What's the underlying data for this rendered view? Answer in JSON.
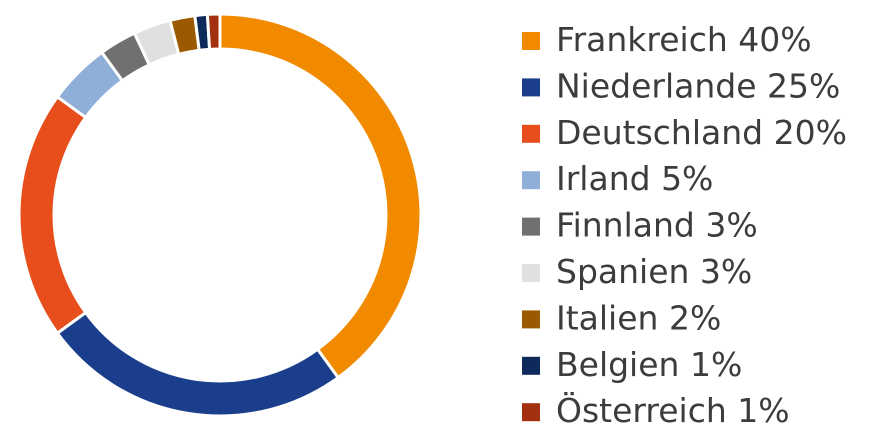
{
  "chart_data": {
    "type": "donut",
    "categories": [
      "Frankreich",
      "Niederlande",
      "Deutschland",
      "Irland",
      "Finnland",
      "Spanien",
      "Italien",
      "Belgien",
      "Österreich"
    ],
    "values": [
      40,
      25,
      20,
      5,
      3,
      3,
      2,
      1,
      1
    ],
    "value_labels": [
      "40%",
      "25%",
      "20%",
      "5%",
      "3%",
      "3%",
      "2%",
      "1%",
      "1%"
    ],
    "colors": [
      "#f28a00",
      "#1a3e8c",
      "#e84e1b",
      "#8fafd8",
      "#707070",
      "#e0e0e0",
      "#9c5a00",
      "#0d2a5a",
      "#a3300f"
    ],
    "legend": "right"
  }
}
